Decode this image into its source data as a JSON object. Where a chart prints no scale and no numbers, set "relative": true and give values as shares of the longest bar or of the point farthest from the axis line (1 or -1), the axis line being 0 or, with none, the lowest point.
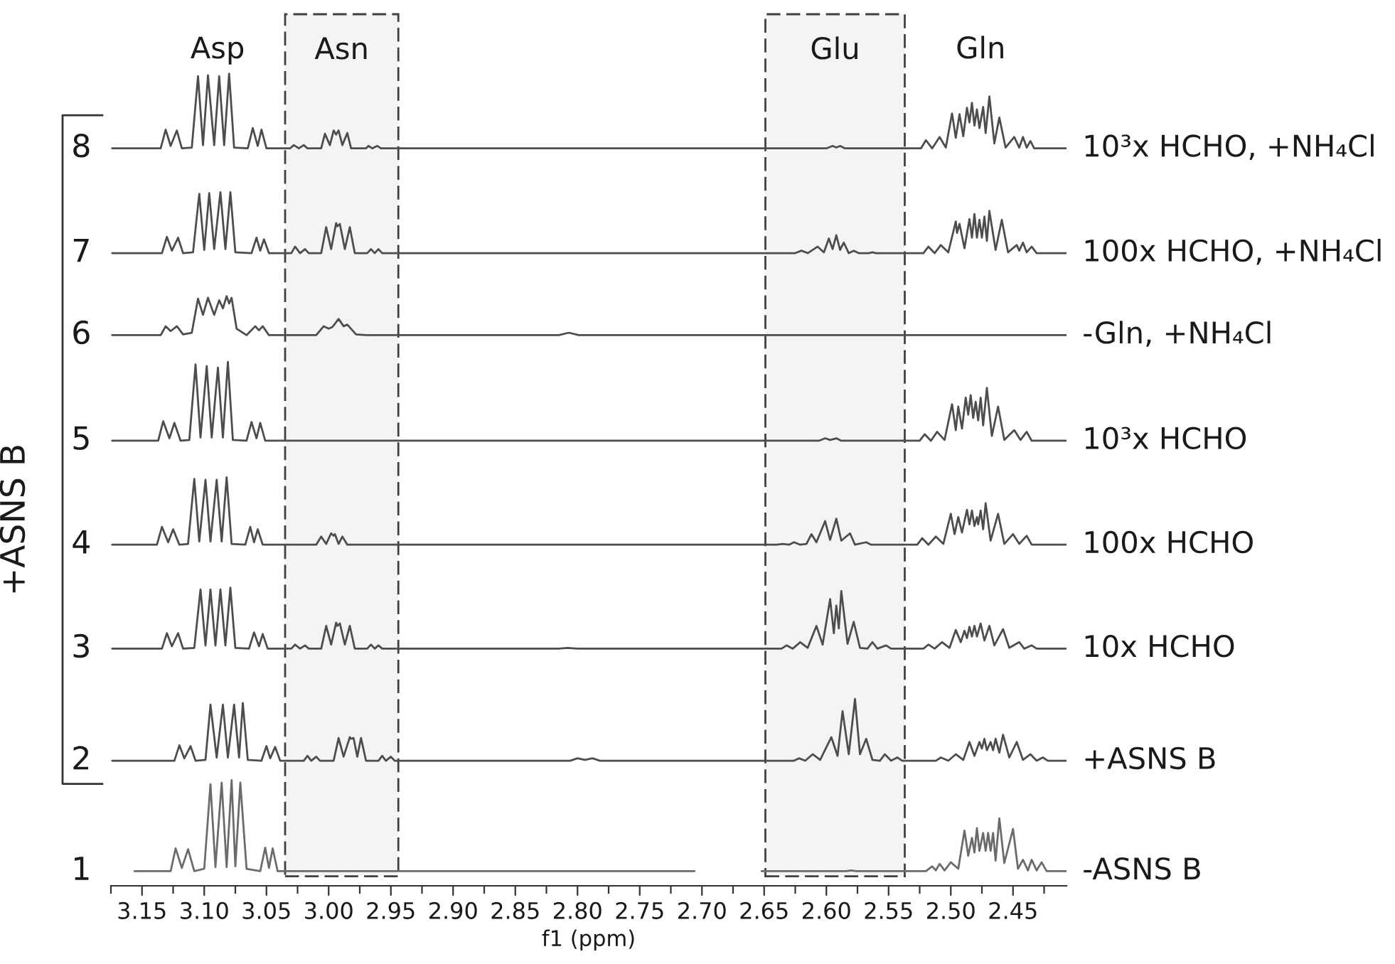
{
  "chart_data": {
    "type": "line",
    "relative": true,
    "xlabel": "f1 (ppm)",
    "ylabel": "+ASNS B",
    "xlim": [
      3.175,
      2.407
    ],
    "xticks": [
      {
        "value": 3.175,
        "label": null
      },
      3.15,
      {
        "value": 3.125,
        "label": null
      },
      {
        "value": 3.1,
        "label": "3.10"
      },
      {
        "value": 3.075,
        "label": null
      },
      3.05,
      {
        "value": 3.025,
        "label": null
      },
      {
        "value": 3.0,
        "label": "3.00"
      },
      {
        "value": 2.975,
        "label": null
      },
      2.95,
      {
        "value": 2.925,
        "label": null
      },
      {
        "value": 2.9,
        "label": "2.90"
      },
      {
        "value": 2.875,
        "label": null
      },
      2.85,
      {
        "value": 2.825,
        "label": null
      },
      {
        "value": 2.8,
        "label": "2.80"
      },
      {
        "value": 2.775,
        "label": null
      },
      2.75,
      {
        "value": 2.725,
        "label": null
      },
      {
        "value": 2.7,
        "label": "2.70"
      },
      {
        "value": 2.675,
        "label": null
      },
      2.65,
      {
        "value": 2.625,
        "label": null
      },
      {
        "value": 2.6,
        "label": "2.60"
      },
      {
        "value": 2.575,
        "label": null
      },
      2.55,
      {
        "value": 2.525,
        "label": null
      },
      {
        "value": 2.5,
        "label": "2.50"
      },
      {
        "value": 2.475,
        "label": null
      },
      2.45,
      {
        "value": 2.425,
        "label": null
      }
    ],
    "bands": [
      {
        "axis": "x",
        "from": 3.035,
        "to": 2.944,
        "label": "Asn",
        "color": "#404040"
      },
      {
        "axis": "x",
        "from": 2.649,
        "to": 2.537,
        "label": "Glu",
        "color": "#404040"
      }
    ],
    "annotations": [
      "Asp",
      "Gln",
      "8",
      "7",
      "6",
      "5",
      "4",
      "3",
      "2",
      "1"
    ],
    "series": [
      {
        "name": "10³x HCHO, +NH₄Cl",
        "color": "#4d4d4d",
        "x": [
          3.174,
          3.135,
          3.131,
          3.127,
          3.122,
          3.118,
          3.11,
          3.105,
          3.101,
          3.097,
          3.092,
          3.088,
          3.084,
          3.08,
          3.076,
          3.065,
          3.061,
          3.057,
          3.054,
          3.05,
          3.031,
          3.028,
          3.024,
          3.02,
          3.017,
          3.006,
          3.003,
          2.999,
          2.996,
          2.994,
          2.992,
          2.989,
          2.985,
          2.982,
          2.97,
          2.968,
          2.965,
          2.961,
          2.958,
          2.6,
          2.595,
          2.592,
          2.589,
          2.585,
          2.524,
          2.52,
          2.515,
          2.509,
          2.504,
          2.499,
          2.496,
          2.493,
          2.49,
          2.487,
          2.485,
          2.483,
          2.481,
          2.479,
          2.477,
          2.474,
          2.472,
          2.469,
          2.465,
          2.461,
          2.456,
          2.449,
          2.445,
          2.442,
          2.439,
          2.436,
          2.433,
          2.407
        ],
        "values": [
          0.908,
          0.908,
          0.931,
          0.911,
          0.93,
          0.908,
          0.909,
          0.997,
          0.912,
          0.998,
          0.912,
          0.997,
          0.912,
          1.0,
          0.909,
          0.908,
          0.933,
          0.911,
          0.931,
          0.908,
          0.908,
          0.912,
          0.908,
          0.912,
          0.908,
          0.908,
          0.926,
          0.912,
          0.93,
          0.925,
          0.93,
          0.912,
          0.927,
          0.908,
          0.908,
          0.911,
          0.908,
          0.911,
          0.908,
          0.908,
          0.911,
          0.909,
          0.911,
          0.908,
          0.908,
          0.918,
          0.908,
          0.922,
          0.909,
          0.951,
          0.921,
          0.95,
          0.923,
          0.958,
          0.94,
          0.964,
          0.936,
          0.956,
          0.933,
          0.959,
          0.927,
          0.972,
          0.914,
          0.946,
          0.909,
          0.922,
          0.909,
          0.922,
          0.909,
          0.917,
          0.908,
          0.908
        ]
      },
      {
        "name": "100x HCHO, +NH₄Cl",
        "color": "#4d4d4d",
        "x": [
          3.174,
          3.134,
          3.13,
          3.126,
          3.121,
          3.117,
          3.109,
          3.104,
          3.1,
          3.096,
          3.092,
          3.087,
          3.083,
          3.079,
          3.075,
          3.062,
          3.058,
          3.055,
          3.052,
          3.048,
          3.03,
          3.027,
          3.023,
          3.019,
          3.016,
          3.006,
          3.002,
          2.998,
          2.994,
          2.993,
          2.991,
          2.987,
          2.983,
          2.979,
          2.969,
          2.966,
          2.963,
          2.96,
          2.957,
          2.625,
          2.62,
          2.615,
          2.607,
          2.602,
          2.598,
          2.595,
          2.592,
          2.589,
          2.586,
          2.582,
          2.578,
          2.574,
          2.566,
          2.563,
          2.56,
          2.522,
          2.518,
          2.513,
          2.508,
          2.502,
          2.496,
          2.495,
          2.493,
          2.489,
          2.485,
          2.483,
          2.481,
          2.479,
          2.477,
          2.475,
          2.473,
          2.471,
          2.469,
          2.464,
          2.459,
          2.454,
          2.447,
          2.445,
          2.442,
          2.439,
          2.435,
          2.431,
          2.407
        ],
        "values": [
          0.779,
          0.779,
          0.799,
          0.782,
          0.798,
          0.779,
          0.78,
          0.852,
          0.783,
          0.853,
          0.784,
          0.854,
          0.784,
          0.854,
          0.78,
          0.779,
          0.798,
          0.782,
          0.796,
          0.779,
          0.779,
          0.787,
          0.779,
          0.784,
          0.779,
          0.779,
          0.811,
          0.784,
          0.816,
          0.812,
          0.815,
          0.784,
          0.811,
          0.779,
          0.779,
          0.784,
          0.779,
          0.784,
          0.779,
          0.779,
          0.782,
          0.779,
          0.787,
          0.78,
          0.797,
          0.784,
          0.801,
          0.783,
          0.792,
          0.779,
          0.782,
          0.779,
          0.779,
          0.78,
          0.779,
          0.779,
          0.787,
          0.779,
          0.789,
          0.78,
          0.818,
          0.804,
          0.815,
          0.785,
          0.821,
          0.798,
          0.827,
          0.798,
          0.82,
          0.798,
          0.824,
          0.794,
          0.831,
          0.783,
          0.82,
          0.78,
          0.789,
          0.782,
          0.792,
          0.78,
          0.787,
          0.779,
          0.779
        ]
      },
      {
        "name": "-Gln, +NH₄Cl",
        "color": "#4d4d4d",
        "x": [
          3.174,
          3.135,
          3.131,
          3.127,
          3.122,
          3.117,
          3.11,
          3.105,
          3.101,
          3.097,
          3.092,
          3.088,
          3.085,
          3.082,
          3.08,
          3.078,
          3.074,
          3.066,
          3.059,
          3.056,
          3.053,
          3.048,
          3.01,
          3.004,
          3.0,
          2.997,
          2.992,
          2.988,
          2.985,
          2.978,
          2.97,
          2.815,
          2.807,
          2.799,
          2.407
        ],
        "values": [
          0.678,
          0.678,
          0.689,
          0.683,
          0.689,
          0.679,
          0.681,
          0.723,
          0.703,
          0.724,
          0.703,
          0.721,
          0.711,
          0.726,
          0.717,
          0.724,
          0.686,
          0.678,
          0.689,
          0.684,
          0.689,
          0.678,
          0.678,
          0.689,
          0.686,
          0.688,
          0.698,
          0.689,
          0.691,
          0.679,
          0.678,
          0.678,
          0.681,
          0.678,
          0.678
        ]
      },
      {
        "name": "10³x HCHO",
        "color": "#4d4d4d",
        "x": [
          3.174,
          3.137,
          3.133,
          3.128,
          3.124,
          3.119,
          3.112,
          3.107,
          3.103,
          3.098,
          3.094,
          3.089,
          3.085,
          3.081,
          3.077,
          3.066,
          3.062,
          3.058,
          3.055,
          3.051,
          2.606,
          2.601,
          2.597,
          2.592,
          2.588,
          2.525,
          2.521,
          2.516,
          2.511,
          2.505,
          2.499,
          2.496,
          2.494,
          2.491,
          2.488,
          2.486,
          2.484,
          2.482,
          2.48,
          2.478,
          2.476,
          2.474,
          2.471,
          2.467,
          2.462,
          2.457,
          2.449,
          2.444,
          2.439,
          2.435,
          2.407
        ],
        "values": [
          0.548,
          0.548,
          0.572,
          0.551,
          0.57,
          0.548,
          0.549,
          0.642,
          0.552,
          0.64,
          0.552,
          0.638,
          0.552,
          0.645,
          0.549,
          0.548,
          0.571,
          0.551,
          0.57,
          0.548,
          0.548,
          0.551,
          0.549,
          0.551,
          0.548,
          0.548,
          0.556,
          0.548,
          0.559,
          0.549,
          0.593,
          0.561,
          0.59,
          0.563,
          0.601,
          0.58,
          0.604,
          0.576,
          0.596,
          0.573,
          0.601,
          0.567,
          0.613,
          0.554,
          0.59,
          0.549,
          0.561,
          0.549,
          0.559,
          0.548,
          0.548
        ]
      },
      {
        "name": "100x HCHO",
        "color": "#4d4d4d",
        "x": [
          3.174,
          3.138,
          3.134,
          3.129,
          3.125,
          3.12,
          3.113,
          3.108,
          3.104,
          3.099,
          3.095,
          3.09,
          3.086,
          3.082,
          3.078,
          3.067,
          3.063,
          3.06,
          3.057,
          3.053,
          3.01,
          3.006,
          3.002,
          2.998,
          2.996,
          2.995,
          2.992,
          2.989,
          2.985,
          2.64,
          2.635,
          2.63,
          2.626,
          2.621,
          2.616,
          2.612,
          2.608,
          2.601,
          2.597,
          2.592,
          2.588,
          2.581,
          2.577,
          2.568,
          2.564,
          2.527,
          2.523,
          2.518,
          2.512,
          2.506,
          2.5,
          2.497,
          2.494,
          2.491,
          2.487,
          2.485,
          2.483,
          2.481,
          2.479,
          2.478,
          2.476,
          2.474,
          2.472,
          2.468,
          2.462,
          2.457,
          2.45,
          2.445,
          2.439,
          2.435,
          2.407
        ],
        "values": [
          0.42,
          0.42,
          0.442,
          0.423,
          0.439,
          0.42,
          0.421,
          0.501,
          0.424,
          0.5,
          0.424,
          0.5,
          0.424,
          0.503,
          0.421,
          0.42,
          0.442,
          0.423,
          0.439,
          0.42,
          0.42,
          0.43,
          0.421,
          0.434,
          0.431,
          0.433,
          0.421,
          0.43,
          0.42,
          0.42,
          0.421,
          0.42,
          0.423,
          0.42,
          0.421,
          0.433,
          0.423,
          0.449,
          0.426,
          0.452,
          0.425,
          0.434,
          0.42,
          0.423,
          0.42,
          0.42,
          0.428,
          0.42,
          0.43,
          0.421,
          0.458,
          0.433,
          0.454,
          0.435,
          0.463,
          0.445,
          0.462,
          0.443,
          0.454,
          0.445,
          0.462,
          0.439,
          0.471,
          0.425,
          0.458,
          0.421,
          0.433,
          0.421,
          0.431,
          0.42,
          0.42
        ]
      },
      {
        "name": "10x HCHO",
        "color": "#4d4d4d",
        "x": [
          3.174,
          3.134,
          3.13,
          3.126,
          3.121,
          3.117,
          3.108,
          3.103,
          3.099,
          3.095,
          3.091,
          3.087,
          3.083,
          3.079,
          3.075,
          3.064,
          3.06,
          3.056,
          3.053,
          3.049,
          3.03,
          3.027,
          3.023,
          3.019,
          3.016,
          3.006,
          3.002,
          2.998,
          2.994,
          2.993,
          2.991,
          2.987,
          2.983,
          2.979,
          2.969,
          2.966,
          2.963,
          2.96,
          2.957,
          2.815,
          2.808,
          2.8,
          2.636,
          2.632,
          2.627,
          2.621,
          2.615,
          2.608,
          2.603,
          2.597,
          2.594,
          2.592,
          2.59,
          2.588,
          2.583,
          2.578,
          2.573,
          2.567,
          2.563,
          2.559,
          2.552,
          2.548,
          2.522,
          2.518,
          2.513,
          2.507,
          2.501,
          2.496,
          2.492,
          2.489,
          2.487,
          2.485,
          2.483,
          2.481,
          2.479,
          2.476,
          2.473,
          2.469,
          2.465,
          2.458,
          2.453,
          2.445,
          2.441,
          2.435,
          2.431,
          2.407
        ],
        "values": [
          0.292,
          0.292,
          0.311,
          0.295,
          0.311,
          0.292,
          0.293,
          0.365,
          0.296,
          0.365,
          0.296,
          0.365,
          0.296,
          0.367,
          0.293,
          0.292,
          0.312,
          0.295,
          0.31,
          0.292,
          0.292,
          0.297,
          0.292,
          0.296,
          0.292,
          0.292,
          0.32,
          0.297,
          0.324,
          0.32,
          0.323,
          0.297,
          0.32,
          0.292,
          0.292,
          0.297,
          0.292,
          0.296,
          0.292,
          0.292,
          0.293,
          0.292,
          0.292,
          0.296,
          0.292,
          0.3,
          0.293,
          0.32,
          0.297,
          0.353,
          0.311,
          0.345,
          0.317,
          0.363,
          0.298,
          0.325,
          0.293,
          0.292,
          0.3,
          0.292,
          0.296,
          0.292,
          0.292,
          0.297,
          0.292,
          0.3,
          0.293,
          0.315,
          0.3,
          0.314,
          0.305,
          0.319,
          0.307,
          0.32,
          0.307,
          0.323,
          0.302,
          0.32,
          0.296,
          0.316,
          0.293,
          0.3,
          0.292,
          0.296,
          0.292,
          0.292
        ]
      },
      {
        "name": "+ASNS B",
        "color": "#4d4d4d",
        "x": [
          3.174,
          3.124,
          3.12,
          3.116,
          3.111,
          3.107,
          3.099,
          3.095,
          3.09,
          3.085,
          3.081,
          3.076,
          3.072,
          3.069,
          3.065,
          3.054,
          3.05,
          3.047,
          3.043,
          3.039,
          3.02,
          3.017,
          3.014,
          3.01,
          3.007,
          2.996,
          2.992,
          2.988,
          2.983,
          2.982,
          2.98,
          2.977,
          2.974,
          2.97,
          2.96,
          2.957,
          2.954,
          2.95,
          2.947,
          2.806,
          2.8,
          2.794,
          2.788,
          2.782,
          2.626,
          2.622,
          2.617,
          2.611,
          2.605,
          2.596,
          2.591,
          2.587,
          2.582,
          2.577,
          2.573,
          2.568,
          2.563,
          2.557,
          2.553,
          2.548,
          2.543,
          2.539,
          2.512,
          2.508,
          2.502,
          2.496,
          2.49,
          2.485,
          2.481,
          2.477,
          2.475,
          2.473,
          2.471,
          2.468,
          2.466,
          2.464,
          2.461,
          2.458,
          2.453,
          2.447,
          2.442,
          2.436,
          2.431,
          2.426,
          2.422,
          2.407
        ],
        "values": [
          0.154,
          0.154,
          0.173,
          0.157,
          0.172,
          0.154,
          0.155,
          0.223,
          0.158,
          0.223,
          0.158,
          0.223,
          0.158,
          0.225,
          0.155,
          0.154,
          0.172,
          0.157,
          0.171,
          0.154,
          0.154,
          0.16,
          0.154,
          0.159,
          0.154,
          0.154,
          0.182,
          0.159,
          0.183,
          0.181,
          0.182,
          0.159,
          0.182,
          0.154,
          0.154,
          0.16,
          0.154,
          0.159,
          0.154,
          0.154,
          0.157,
          0.155,
          0.157,
          0.154,
          0.154,
          0.157,
          0.154,
          0.162,
          0.155,
          0.183,
          0.16,
          0.215,
          0.162,
          0.23,
          0.162,
          0.181,
          0.155,
          0.154,
          0.162,
          0.154,
          0.158,
          0.154,
          0.154,
          0.158,
          0.154,
          0.162,
          0.155,
          0.177,
          0.16,
          0.177,
          0.169,
          0.181,
          0.167,
          0.177,
          0.167,
          0.181,
          0.164,
          0.186,
          0.158,
          0.177,
          0.155,
          0.162,
          0.154,
          0.158,
          0.154,
          0.154
        ]
      },
      {
        "name": "-ASNS B",
        "color": "#6b6b6b",
        "x": [
          3.156,
          3.127,
          3.123,
          3.118,
          3.113,
          3.108,
          3.1,
          3.095,
          3.091,
          3.086,
          3.082,
          3.078,
          3.075,
          3.071,
          3.066,
          3.055,
          3.051,
          3.048,
          3.045,
          3.041,
          2.706,
          2.68,
          2.652,
          2.584,
          2.58,
          2.576,
          2.52,
          2.515,
          2.512,
          2.509,
          2.505,
          2.5,
          2.494,
          2.489,
          2.486,
          2.483,
          2.481,
          2.479,
          2.477,
          2.474,
          2.472,
          2.47,
          2.468,
          2.466,
          2.464,
          2.461,
          2.457,
          2.45,
          2.446,
          2.442,
          2.438,
          2.435,
          2.431,
          2.427,
          2.423,
          2.407
        ],
        "values": [
          0.018,
          0.018,
          0.046,
          0.022,
          0.045,
          0.018,
          0.021,
          0.125,
          0.023,
          0.127,
          0.023,
          0.13,
          0.024,
          0.127,
          0.021,
          0.018,
          0.047,
          0.022,
          0.046,
          0.018,
          0.018,
          null,
          0.018,
          0.018,
          0.019,
          0.018,
          0.018,
          0.024,
          0.019,
          0.027,
          0.019,
          0.029,
          0.021,
          0.068,
          0.037,
          0.059,
          0.041,
          0.071,
          0.043,
          0.065,
          0.043,
          0.065,
          0.043,
          0.065,
          0.031,
          0.083,
          0.028,
          0.07,
          0.021,
          0.032,
          0.019,
          0.032,
          0.019,
          0.029,
          0.018,
          0.018
        ]
      }
    ]
  }
}
